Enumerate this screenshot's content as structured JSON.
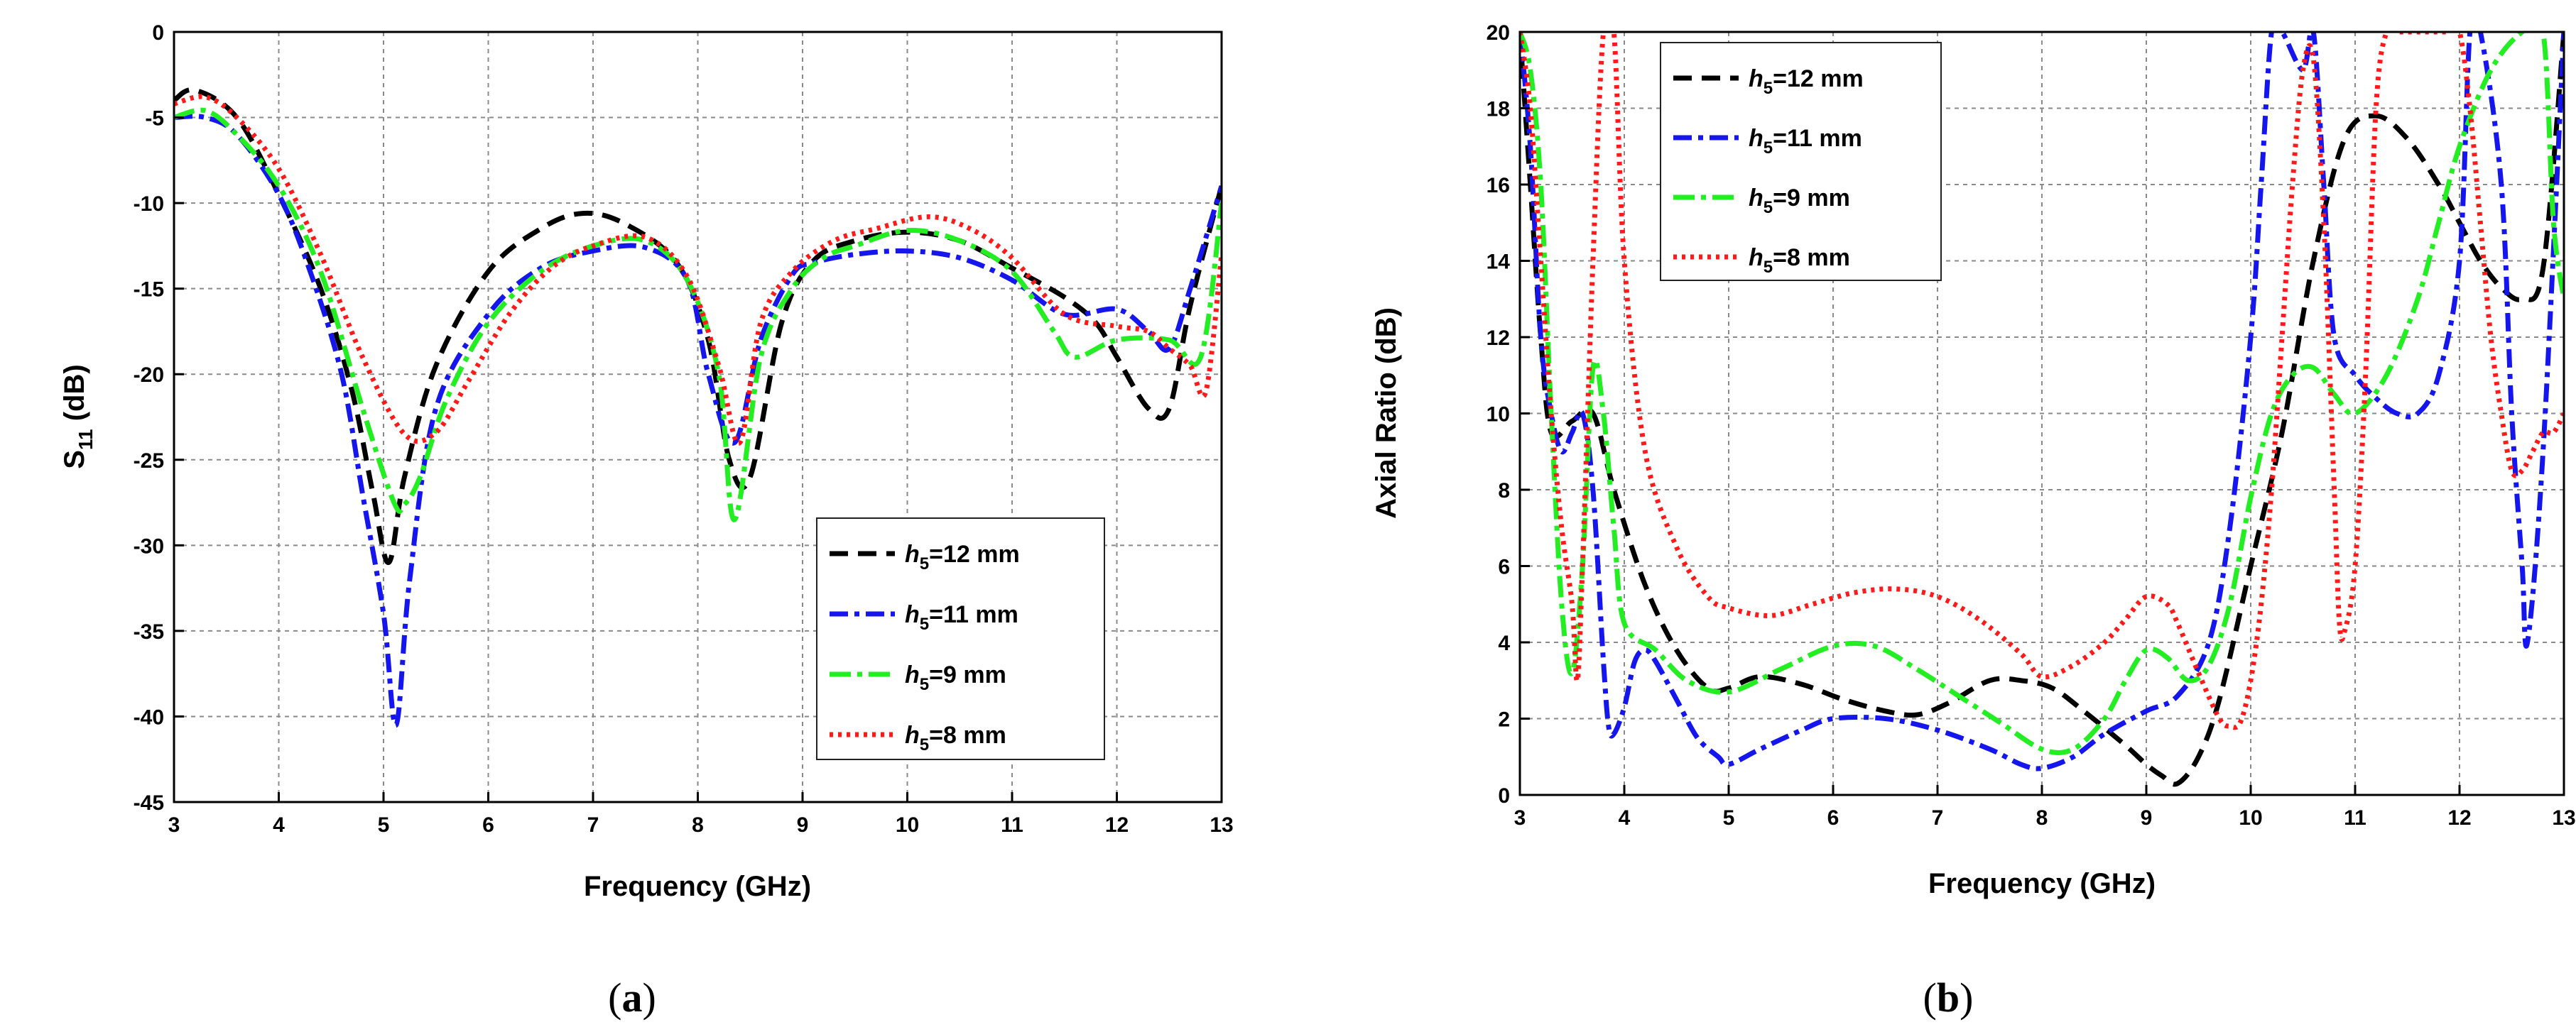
{
  "chart_data": [
    {
      "type": "line",
      "panel_id": "a",
      "caption": "(a)",
      "xlabel": "Frequency (GHz)",
      "ylabel": "S11 (dB)",
      "ylabel_main": "S",
      "ylabel_sub": "11",
      "ylabel_unit": " (dB)",
      "xlim": [
        3,
        13
      ],
      "ylim": [
        -45,
        0
      ],
      "xticks": [
        3,
        4,
        5,
        6,
        7,
        8,
        9,
        10,
        11,
        12,
        13
      ],
      "yticks": [
        0,
        -5,
        -10,
        -15,
        -20,
        -25,
        -30,
        -35,
        -40,
        -45
      ],
      "grid": true,
      "legend_position": "lower-right",
      "series": [
        {
          "name": "h5=12 mm",
          "label_italic": "h",
          "label_sub": "5",
          "label_rest": "=12 mm",
          "color": "#000000",
          "dash": "26 14",
          "x": [
            3,
            3.2,
            3.6,
            4,
            4.4,
            4.7,
            4.9,
            5.05,
            5.2,
            5.5,
            6,
            6.5,
            6.9,
            7.3,
            7.8,
            8.1,
            8.3,
            8.5,
            8.8,
            9.1,
            9.5,
            10,
            10.5,
            11,
            11.5,
            11.8,
            12,
            12.3,
            12.5,
            12.7,
            13
          ],
          "y": [
            -4,
            -3.4,
            -5,
            -9.5,
            -15,
            -21,
            -27,
            -31,
            -26,
            -19.5,
            -14,
            -11.5,
            -10.6,
            -11.2,
            -13.5,
            -18,
            -25,
            -26,
            -17,
            -13.4,
            -12.2,
            -11.7,
            -12.2,
            -13.8,
            -15.5,
            -17,
            -19,
            -22,
            -22,
            -16,
            -9
          ]
        },
        {
          "name": "h5=11 mm",
          "label_italic": "h",
          "label_sub": "5",
          "label_rest": "=11 mm",
          "color": "#1515ee",
          "dash": "26 9 7 9",
          "x": [
            3,
            3.3,
            3.6,
            4,
            4.3,
            4.6,
            4.8,
            5,
            5.12,
            5.25,
            5.5,
            6,
            6.5,
            7,
            7.5,
            7.9,
            8.1,
            8.35,
            8.6,
            8.9,
            9.1,
            9.5,
            10,
            10.5,
            11,
            11.5,
            12,
            12.3,
            12.5,
            12.7,
            13
          ],
          "y": [
            -5,
            -5,
            -6,
            -9.5,
            -14,
            -20,
            -27,
            -34,
            -40.5,
            -32,
            -22,
            -16.5,
            -13.8,
            -12.8,
            -12.6,
            -14.5,
            -20,
            -24,
            -18,
            -14.2,
            -13.5,
            -13,
            -12.8,
            -13.2,
            -14.5,
            -16.5,
            -16.2,
            -17.5,
            -18.5,
            -15,
            -9
          ]
        },
        {
          "name": "h5=9 mm",
          "label_italic": "h",
          "label_sub": "5",
          "label_rest": "=9 mm",
          "color": "#22ee22",
          "dash": "30 9 7 9",
          "x": [
            3,
            3.3,
            3.6,
            4,
            4.4,
            4.8,
            5.1,
            5.2,
            5.35,
            5.6,
            6,
            6.5,
            7,
            7.5,
            7.9,
            8.2,
            8.35,
            8.6,
            8.9,
            9.2,
            9.5,
            10,
            10.5,
            11,
            11.4,
            11.6,
            12,
            12.5,
            12.8,
            13
          ],
          "y": [
            -5,
            -4.6,
            -6,
            -9,
            -14,
            -22,
            -27.5,
            -27.6,
            -26,
            -21.5,
            -17,
            -14,
            -12.5,
            -12.2,
            -14.5,
            -20,
            -28.5,
            -19,
            -15,
            -13.2,
            -12.5,
            -11.6,
            -12.2,
            -14,
            -17.5,
            -19,
            -18,
            -18,
            -19,
            -10
          ]
        },
        {
          "name": "h5=8 mm",
          "label_italic": "h",
          "label_sub": "5",
          "label_rest": "=8 mm",
          "color": "#ff1a1a",
          "dash": "5 7",
          "x": [
            3,
            3.3,
            3.6,
            4,
            4.4,
            4.8,
            5.2,
            5.5,
            5.8,
            6.2,
            6.6,
            7,
            7.5,
            7.9,
            8.2,
            8.4,
            8.6,
            8.9,
            9.3,
            9.7,
            10.2,
            10.6,
            11,
            11.5,
            12,
            12.3,
            12.5,
            12.7,
            12.85,
            13
          ],
          "y": [
            -4.2,
            -3.8,
            -5,
            -8,
            -13,
            -19,
            -23.5,
            -23.4,
            -20.5,
            -16.5,
            -13.8,
            -12.5,
            -12,
            -14.3,
            -19.5,
            -24,
            -17,
            -14,
            -12.2,
            -11.5,
            -10.8,
            -11.5,
            -13.2,
            -16.5,
            -17.2,
            -17.5,
            -18.5,
            -19.5,
            -21,
            -13
          ]
        }
      ]
    },
    {
      "type": "line",
      "panel_id": "b",
      "caption": "(b)",
      "xlabel": "Frequency (GHz)",
      "ylabel": "Axial Ratio (dB)",
      "xlim": [
        3,
        13
      ],
      "ylim": [
        0,
        20
      ],
      "xticks": [
        3,
        4,
        5,
        6,
        7,
        8,
        9,
        10,
        11,
        12,
        13
      ],
      "yticks": [
        0,
        2,
        4,
        6,
        8,
        10,
        12,
        14,
        16,
        18,
        20
      ],
      "grid": true,
      "legend_position": "top-left",
      "series": [
        {
          "name": "h5=12 mm",
          "label_italic": "h",
          "label_sub": "5",
          "label_rest": "=12 mm",
          "color": "#000000",
          "dash": "26 14",
          "x": [
            3,
            3.1,
            3.2,
            3.3,
            3.5,
            3.7,
            3.9,
            4.2,
            4.5,
            4.8,
            5,
            5.3,
            5.7,
            6.1,
            6.5,
            6.8,
            7.1,
            7.5,
            7.8,
            8.1,
            8.4,
            8.8,
            9,
            9.15,
            9.3,
            9.5,
            9.7,
            10,
            10.3,
            10.6,
            10.9,
            11.2,
            11.5,
            11.8,
            12,
            12.2,
            12.4,
            12.6,
            12.8,
            13
          ],
          "y": [
            20,
            16,
            12,
            9.5,
            9.8,
            10,
            8,
            5.5,
            3.8,
            2.8,
            2.8,
            3.1,
            2.9,
            2.5,
            2.2,
            2.1,
            2.4,
            3,
            3,
            2.8,
            2.2,
            1.3,
            0.8,
            0.5,
            0.3,
            1,
            2.5,
            6,
            9.5,
            14,
            17.2,
            17.8,
            17.2,
            16,
            15,
            14,
            13.3,
            13,
            13.8,
            20
          ]
        },
        {
          "name": "h5=11 mm",
          "label_italic": "h",
          "label_sub": "5",
          "label_rest": "=11 mm",
          "color": "#1515ee",
          "dash": "26 9 7 9",
          "x": [
            3,
            3.1,
            3.2,
            3.3,
            3.4,
            3.5,
            3.6,
            3.7,
            3.8,
            3.85,
            3.9,
            4,
            4.1,
            4.2,
            4.3,
            4.5,
            4.7,
            4.9,
            5,
            5.3,
            5.7,
            6,
            6.5,
            7,
            7.5,
            7.8,
            8,
            8.3,
            8.6,
            9,
            9.3,
            9.6,
            9.8,
            10,
            10.1,
            10.2,
            10.3,
            10.5,
            10.6,
            10.7,
            10.8,
            11,
            11.2,
            11.4,
            11.6,
            11.8,
            12,
            12.1,
            12.2,
            12.4,
            12.5,
            12.6,
            12.65,
            12.8,
            13
          ],
          "y": [
            20,
            17,
            12,
            10,
            9,
            9.5,
            10,
            8,
            3.5,
            1.8,
            1.6,
            2.3,
            3.5,
            3.8,
            3.5,
            2.5,
            1.5,
            1,
            0.8,
            1.2,
            1.7,
            2,
            2,
            1.7,
            1.2,
            0.8,
            0.7,
            1,
            1.6,
            2.2,
            2.6,
            4,
            7,
            12,
            16,
            20,
            20,
            19,
            20,
            16,
            12,
            11,
            10.4,
            10,
            10,
            11,
            14,
            20,
            20,
            16,
            10,
            6,
            4,
            9,
            20
          ]
        },
        {
          "name": "h5=9 mm",
          "label_italic": "h",
          "label_sub": "5",
          "label_rest": "=9 mm",
          "color": "#22ee22",
          "dash": "30 9 7 9",
          "x": [
            3,
            3.1,
            3.2,
            3.3,
            3.4,
            3.5,
            3.6,
            3.7,
            3.8,
            3.9,
            4,
            4.3,
            4.6,
            5,
            5.5,
            6,
            6.4,
            6.8,
            7.2,
            7.6,
            8,
            8.3,
            8.6,
            8.8,
            9,
            9.2,
            9.4,
            9.6,
            9.8,
            10,
            10.2,
            10.4,
            10.6,
            10.8,
            11,
            11.3,
            11.6,
            11.8,
            12,
            12.3,
            12.6,
            12.8,
            12.9,
            13
          ],
          "y": [
            20,
            19,
            16,
            10,
            5,
            3.2,
            6,
            11.2,
            10,
            7,
            4.5,
            3.8,
            3,
            2.7,
            3.3,
            3.9,
            3.9,
            3.3,
            2.6,
            1.9,
            1.2,
            1.2,
            2,
            3,
            3.8,
            3.6,
            3,
            3.4,
            5,
            7.8,
            10,
            11,
            11.2,
            10.5,
            10,
            11,
            13,
            15,
            17,
            19,
            20,
            20,
            15,
            13
          ]
        },
        {
          "name": "h5=8 mm",
          "label_italic": "h",
          "label_sub": "5",
          "label_rest": "=8 mm",
          "color": "#ff1a1a",
          "dash": "5 7",
          "x": [
            3,
            3.1,
            3.2,
            3.3,
            3.4,
            3.5,
            3.55,
            3.6,
            3.7,
            3.8,
            3.9,
            4,
            4.2,
            4.5,
            4.8,
            5,
            5.4,
            5.8,
            6.2,
            6.6,
            7,
            7.4,
            7.8,
            8,
            8.3,
            8.6,
            8.8,
            9,
            9.2,
            9.3,
            9.5,
            9.7,
            9.8,
            9.9,
            10,
            10.1,
            10.2,
            10.3,
            10.4,
            10.5,
            10.6,
            10.7,
            10.8,
            10.85,
            10.9,
            11,
            11.1,
            11.2,
            11.3,
            11.4,
            11.5,
            11.6,
            11.7,
            11.8,
            11.9,
            12,
            12.1,
            12.2,
            12.3,
            12.4,
            12.5,
            12.6,
            12.7,
            12.8,
            12.9,
            13
          ],
          "y": [
            20,
            18,
            14,
            10,
            7,
            5,
            3,
            6,
            14,
            20,
            20,
            14,
            9,
            6.5,
            5.2,
            4.9,
            4.7,
            5,
            5.3,
            5.4,
            5.2,
            4.6,
            3.7,
            3.1,
            3.4,
            4,
            4.6,
            5.2,
            5,
            4.5,
            3.2,
            2,
            1.8,
            1.9,
            3,
            5,
            8,
            12,
            16,
            19,
            19.3,
            15,
            8,
            4.5,
            4.3,
            6,
            11,
            18,
            20,
            20,
            20,
            20,
            20,
            20,
            20,
            20,
            18,
            15,
            12,
            10,
            8.5,
            8.5,
            9,
            9.5,
            9.5,
            10
          ]
        }
      ]
    }
  ]
}
